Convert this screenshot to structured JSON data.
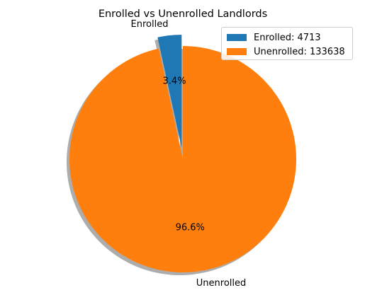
{
  "chart_data": {
    "type": "pie",
    "title": "Enrolled vs Unenrolled Landlords",
    "slices": [
      {
        "label": "Enrolled",
        "value": 4713,
        "pct_label": "3.4%",
        "color": "#1f77b4",
        "exploded": true
      },
      {
        "label": "Unenrolled",
        "value": 133638,
        "pct_label": "96.6%",
        "color": "#ff7f0e",
        "exploded": false
      }
    ],
    "shadow": true,
    "start_angle_deg": 90,
    "legend": {
      "position": "top-right",
      "entries": [
        "Enrolled: 4713",
        "Unenrolled: 133638"
      ]
    }
  }
}
